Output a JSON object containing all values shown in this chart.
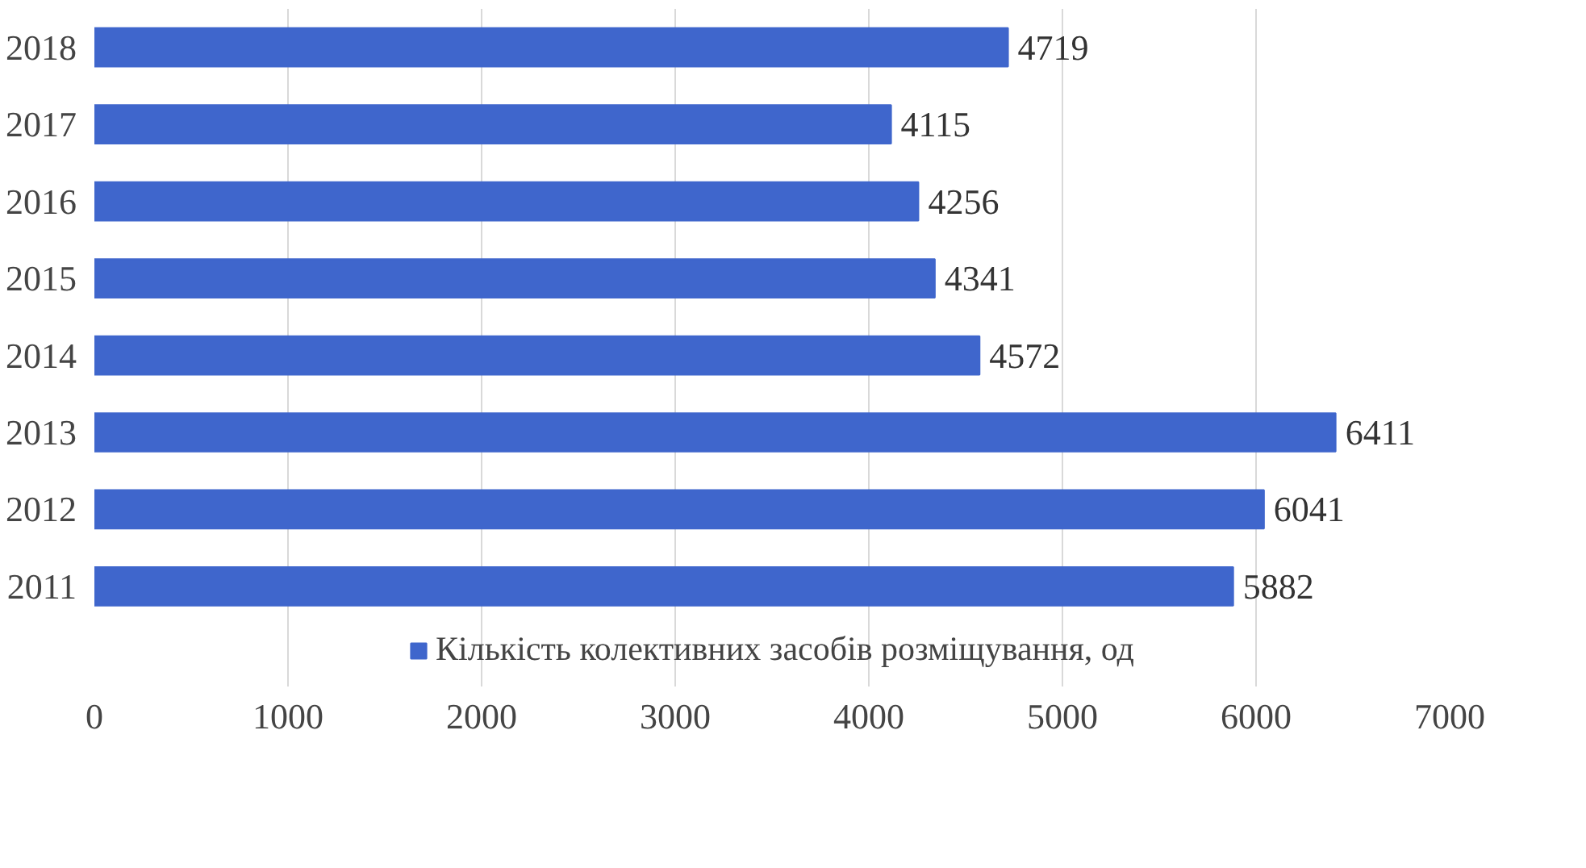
{
  "chart_data": {
    "type": "bar",
    "orientation": "horizontal",
    "categories": [
      "2018",
      "2017",
      "2016",
      "2015",
      "2014",
      "2013",
      "2012",
      "2011"
    ],
    "series": [
      {
        "name": "Кількість колективних засобів розміщування, од",
        "color": "#3f66cc",
        "values": [
          4719,
          4115,
          4256,
          4341,
          4572,
          6411,
          6041,
          5882
        ]
      }
    ],
    "xlim": [
      0,
      7000
    ],
    "xticks": [
      0,
      1000,
      2000,
      3000,
      4000,
      5000,
      6000,
      7000
    ],
    "grid": "x",
    "legend": "bottom",
    "data_labels": true
  }
}
